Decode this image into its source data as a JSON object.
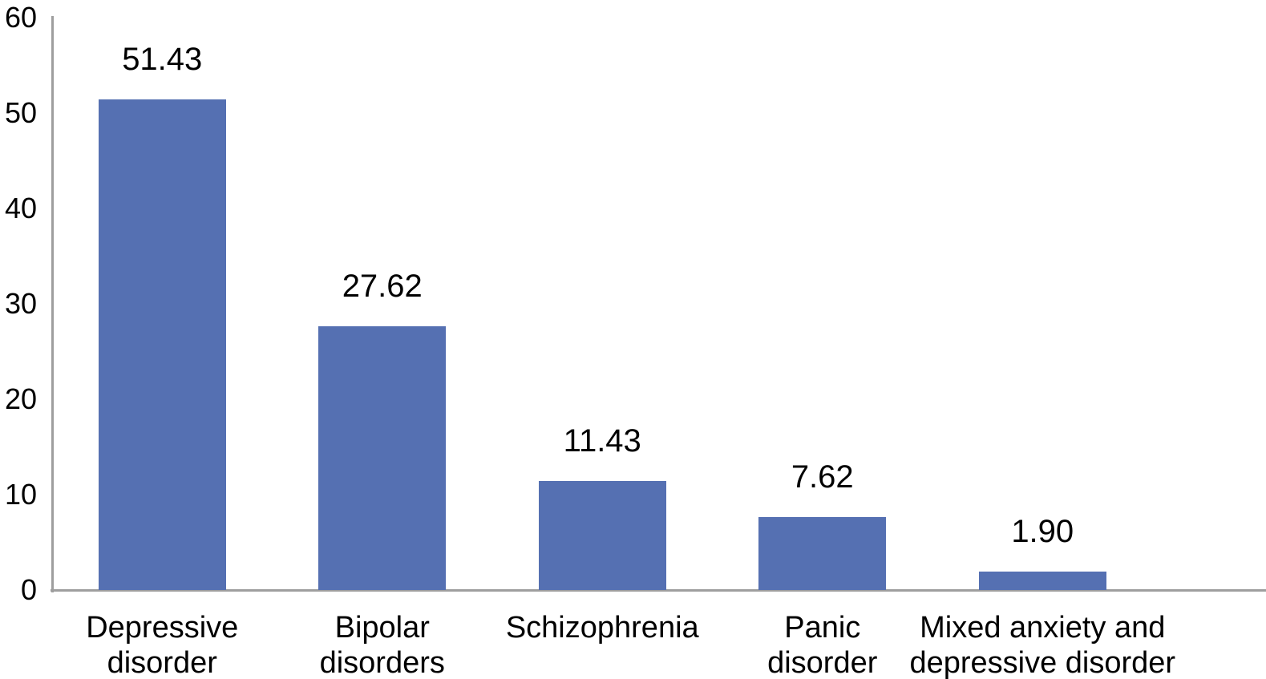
{
  "chart_data": {
    "type": "bar",
    "categories": [
      "Depressive\ndisorder",
      "Bipolar\ndisorders",
      "Schizophrenia",
      "Panic\ndisorder",
      "Mixed anxiety and\ndepressive disorder"
    ],
    "values": [
      51.43,
      27.62,
      11.43,
      7.62,
      1.9
    ],
    "value_labels": [
      "51.43",
      "27.62",
      "11.43",
      "7.62",
      "1.90"
    ],
    "ylim": [
      0,
      60
    ],
    "ytick_labels": [
      "0",
      "10",
      "20",
      "30",
      "40",
      "50",
      "60"
    ],
    "grid": false,
    "legend": "none",
    "colors": {
      "bar": "#5570B2",
      "axis": "#9E9E9E",
      "text": "#000000",
      "background": "#FFFFFF"
    }
  }
}
